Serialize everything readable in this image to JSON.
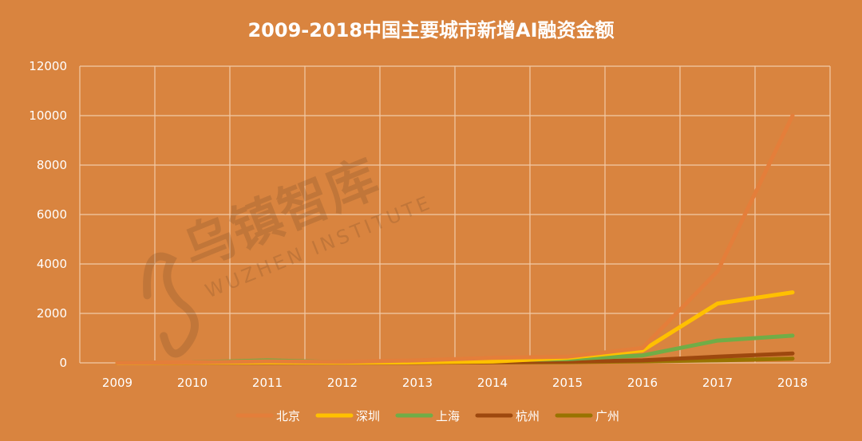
{
  "chart_data": {
    "type": "line",
    "title": "2009-2018中国主要城市新增AI融资金额",
    "xlabel": "",
    "ylabel": "",
    "categories": [
      "2009",
      "2010",
      "2011",
      "2012",
      "2013",
      "2014",
      "2015",
      "2016",
      "2017",
      "2018"
    ],
    "ylim": [
      0,
      12000
    ],
    "yticks": [
      "0",
      "2000",
      "4000",
      "6000",
      "8000",
      "10000",
      "12000"
    ],
    "grid": true,
    "legend_position": "bottom",
    "series": [
      {
        "name": "北京",
        "color": "#E47E3A",
        "values": [
          10,
          20,
          60,
          40,
          100,
          200,
          250,
          600,
          3700,
          10000
        ]
      },
      {
        "name": "深圳",
        "color": "#FFC000",
        "values": [
          0,
          5,
          15,
          5,
          20,
          50,
          200,
          500,
          2400,
          2850
        ]
      },
      {
        "name": "上海",
        "color": "#70AD47",
        "values": [
          5,
          20,
          100,
          30,
          40,
          100,
          150,
          300,
          900,
          1100
        ]
      },
      {
        "name": "杭州",
        "color": "#9E480E",
        "values": [
          0,
          5,
          10,
          5,
          10,
          30,
          50,
          100,
          250,
          380
        ]
      },
      {
        "name": "广州",
        "color": "#997300",
        "values": [
          0,
          5,
          10,
          5,
          10,
          20,
          30,
          60,
          100,
          170
        ]
      }
    ]
  },
  "watermark": {
    "text": "乌镇智库",
    "subtext": "WUZHEN INSTITUTE"
  }
}
